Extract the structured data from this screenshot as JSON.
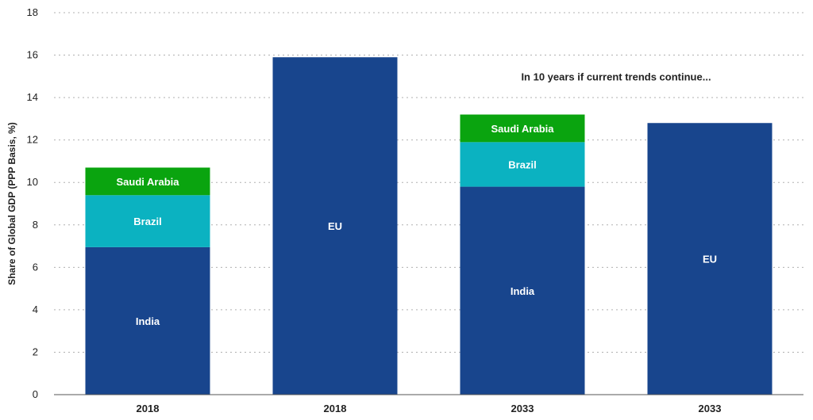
{
  "chart_data": {
    "type": "bar",
    "stacked": true,
    "categories": [
      "2018",
      "2018",
      "2033",
      "2033"
    ],
    "series": [
      {
        "name": "India",
        "color": "#18458d",
        "values": [
          6.95,
          0,
          9.8,
          0
        ]
      },
      {
        "name": "Brazil",
        "color": "#0bb2c1",
        "values": [
          2.45,
          0,
          2.1,
          0
        ]
      },
      {
        "name": "Saudi Arabia",
        "color": "#0aa40f",
        "values": [
          1.3,
          0,
          1.3,
          0
        ]
      },
      {
        "name": "EU",
        "color": "#18458d",
        "values": [
          0,
          15.9,
          0,
          12.8
        ]
      }
    ],
    "ylabel": "Share of Global GDP (PPP Basis, %)",
    "xlabel": "",
    "ylim": [
      0,
      18
    ],
    "yticks": [
      0,
      2,
      4,
      6,
      8,
      10,
      12,
      14,
      16,
      18
    ],
    "grid": true,
    "annotation": "In 10 years if current trends continue..."
  }
}
